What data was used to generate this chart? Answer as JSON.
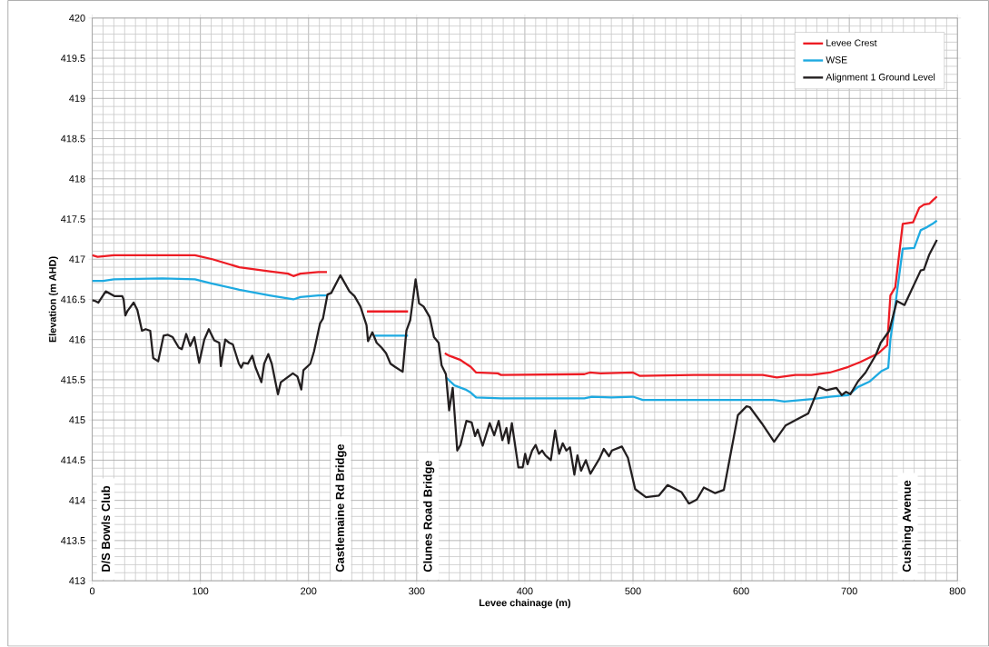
{
  "chart_data": {
    "type": "line",
    "xlabel": "Levee chainage (m)",
    "ylabel": "Elevation  (m AHD)",
    "xlim": [
      0,
      800
    ],
    "ylim": [
      413,
      420
    ],
    "xticks": [
      0,
      100,
      200,
      300,
      400,
      500,
      600,
      700,
      800
    ],
    "yticks": [
      413,
      413.5,
      414,
      414.5,
      415,
      415.5,
      416,
      416.5,
      417,
      417.5,
      418,
      418.5,
      419,
      419.5,
      420
    ],
    "grid": true,
    "legend": "top right",
    "marker": "none",
    "line_style": "solid",
    "series": [
      {
        "name": "Levee Crest",
        "color": "#ed1c24",
        "x": [
          0,
          5,
          20,
          95,
          111,
          136,
          164,
          181,
          186,
          192.5,
          209,
          217,
          235,
          254,
          292,
          310,
          326,
          330,
          340,
          350,
          355,
          375,
          378,
          455,
          460,
          470,
          500,
          506,
          560,
          620,
          633,
          650,
          665,
          682,
          699,
          710,
          727,
          735,
          738,
          742.5,
          749.4,
          759,
          764.7,
          769,
          774,
          777,
          781
        ],
        "values": [
          417.05,
          417.03,
          417.05,
          417.05,
          417.0,
          416.9,
          416.85,
          416.82,
          416.79,
          416.82,
          416.84,
          416.84,
          null,
          416.35,
          416.35,
          null,
          415.83,
          415.8,
          415.75,
          415.66,
          415.59,
          415.58,
          415.56,
          415.57,
          415.59,
          415.58,
          415.59,
          415.55,
          415.56,
          415.56,
          415.53,
          415.56,
          415.56,
          415.59,
          415.66,
          415.72,
          415.83,
          415.93,
          416.55,
          416.65,
          417.44,
          417.46,
          417.64,
          417.68,
          417.69,
          417.73,
          417.78
        ]
      },
      {
        "name": "WSE",
        "color": "#1eaae1",
        "x": [
          0,
          10,
          20,
          65,
          95,
          110,
          136,
          164,
          186,
          192.5,
          209,
          217,
          240,
          261,
          292,
          310,
          327,
          335,
          345,
          350,
          355,
          378,
          455,
          462,
          480,
          500,
          509,
          630,
          640,
          666,
          682,
          699,
          708,
          719,
          730,
          736,
          738,
          743,
          749.4,
          760,
          766,
          772,
          777,
          781
        ],
        "values": [
          416.73,
          416.73,
          416.75,
          416.76,
          416.75,
          416.7,
          416.62,
          416.55,
          416.5,
          416.53,
          416.55,
          416.55,
          null,
          416.05,
          416.05,
          null,
          415.53,
          415.43,
          415.38,
          415.34,
          415.28,
          415.27,
          415.27,
          415.29,
          415.28,
          415.29,
          415.25,
          415.25,
          415.23,
          415.26,
          415.29,
          415.31,
          415.41,
          415.48,
          415.61,
          415.65,
          416.0,
          416.48,
          417.13,
          417.14,
          417.36,
          417.4,
          417.44,
          417.48
        ]
      },
      {
        "name": "Alignment 1 Ground Level",
        "color": "#231f20",
        "x": [
          0,
          2.8,
          5.6,
          12.5,
          20.8,
          27.8,
          29,
          30.6,
          32.8,
          38.3,
          41.7,
          46,
          49.4,
          53.6,
          56.4,
          61,
          66,
          70,
          74.4,
          80,
          82.8,
          86.9,
          90.6,
          94.4,
          98.9,
          103.6,
          107.8,
          112.8,
          117.5,
          118.9,
          123,
          126.7,
          130,
          135.6,
          137.8,
          139.7,
          143.9,
          148,
          150.8,
          156.4,
          159,
          162.8,
          166,
          171.7,
          174.4,
          185.5,
          189.7,
          193.3,
          195.3,
          201.7,
          205,
          210.6,
          213.3,
          217.5,
          221,
          229.4,
          237.8,
          242.5,
          248,
          253.6,
          255,
          259,
          263,
          267.5,
          271.7,
          275.8,
          280,
          287,
          290.5,
          294,
          299,
          302.2,
          306.4,
          312,
          316,
          320.3,
          323,
          327,
          330,
          333.3,
          337.5,
          340.5,
          346,
          350.8,
          354,
          356.4,
          361,
          367.5,
          371.7,
          375.8,
          379.2,
          383,
          385,
          388,
          394,
          398,
          400.3,
          402.5,
          406.7,
          410,
          413,
          416,
          419,
          424,
          428,
          431.7,
          435,
          438.3,
          441.7,
          445.8,
          448.6,
          452,
          456.4,
          460.6,
          469,
          473,
          477.8,
          480.5,
          489.7,
          495.3,
          502,
          512,
          524,
          532,
          545,
          551.7,
          559,
          565.5,
          576,
          584,
          597,
          605,
          608,
          619,
          630.5,
          641,
          652,
          662,
          672,
          679,
          688,
          693,
          697,
          701,
          708,
          715,
          724.6,
          729,
          737,
          744,
          751,
          766,
          769,
          774,
          781
        ],
        "values": [
          416.49,
          416.48,
          416.46,
          416.6,
          416.54,
          416.54,
          416.5,
          416.3,
          416.36,
          416.46,
          416.37,
          416.11,
          416.13,
          416.11,
          415.77,
          415.73,
          416.05,
          416.06,
          416.03,
          415.9,
          415.88,
          416.07,
          415.92,
          416.03,
          415.71,
          416.0,
          416.13,
          415.99,
          415.96,
          415.67,
          416.0,
          415.96,
          415.94,
          415.7,
          415.65,
          415.71,
          415.7,
          415.8,
          415.66,
          415.47,
          415.7,
          415.82,
          415.7,
          415.32,
          415.47,
          415.58,
          415.54,
          415.38,
          415.62,
          415.7,
          415.85,
          416.2,
          416.26,
          416.56,
          416.58,
          416.8,
          416.6,
          416.54,
          416.41,
          416.18,
          415.98,
          416.09,
          415.96,
          415.9,
          415.83,
          415.7,
          415.66,
          415.6,
          416.11,
          416.24,
          416.75,
          416.45,
          416.41,
          416.28,
          416.03,
          415.96,
          415.68,
          415.57,
          415.12,
          415.4,
          414.62,
          414.69,
          414.99,
          414.97,
          414.8,
          414.88,
          414.68,
          414.96,
          414.81,
          414.99,
          414.75,
          414.9,
          414.71,
          414.96,
          414.41,
          414.41,
          414.58,
          414.45,
          414.62,
          414.69,
          414.58,
          414.62,
          414.56,
          414.5,
          414.87,
          414.58,
          414.71,
          414.62,
          414.66,
          414.32,
          414.56,
          414.37,
          414.5,
          414.33,
          414.52,
          414.64,
          414.55,
          414.62,
          414.67,
          414.53,
          414.14,
          414.04,
          414.06,
          414.19,
          414.1,
          413.96,
          414.01,
          414.16,
          414.09,
          414.13,
          415.06,
          415.17,
          415.16,
          414.96,
          414.73,
          414.93,
          415.01,
          415.08,
          415.41,
          415.37,
          415.4,
          415.31,
          415.35,
          415.32,
          415.48,
          415.59,
          415.81,
          415.96,
          416.11,
          416.48,
          416.43,
          416.86,
          416.87,
          417.06,
          417.24
        ]
      }
    ],
    "annotations": [
      "D/S Bowls Club",
      "Castlemaine Rd  Bridge",
      "Clunes Road Bridge",
      "Cushing Avenue"
    ]
  }
}
